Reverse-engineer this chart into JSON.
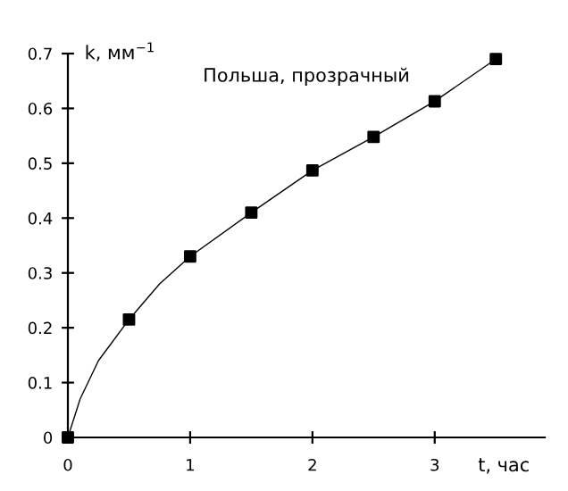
{
  "chart_data": {
    "type": "scatter",
    "xlabel": "t, час",
    "ylabel": "k, мм$^{−1}$",
    "annotations": [
      "Польша, прозрачный"
    ],
    "series": [
      {
        "type": "line",
        "color": "#000000",
        "marker": "none",
        "x": [
          0,
          0.1,
          0.25,
          0.5,
          0.75,
          1,
          1.5,
          2,
          2.5,
          3,
          3.5
        ],
        "values": [
          0,
          0.07,
          0.14,
          0.215,
          0.28,
          0.33,
          0.41,
          0.487,
          0.548,
          0.613,
          0.69
        ]
      },
      {
        "color": "#000000",
        "marker": "square",
        "x": [
          0,
          0.5,
          1,
          1.5,
          2,
          2.5,
          3,
          3.5
        ],
        "values": [
          0,
          0.215,
          0.33,
          0.41,
          0.487,
          0.548,
          0.613,
          0.69
        ]
      }
    ],
    "xlim": [
      0,
      3.9
    ],
    "ylim": [
      0,
      0.7
    ],
    "xticks": [
      0,
      1,
      2,
      3
    ],
    "yticks": [
      0,
      0.1,
      0.2,
      0.3,
      0.4,
      0.5,
      0.6,
      0.7
    ],
    "grid": false,
    "legend": false
  }
}
